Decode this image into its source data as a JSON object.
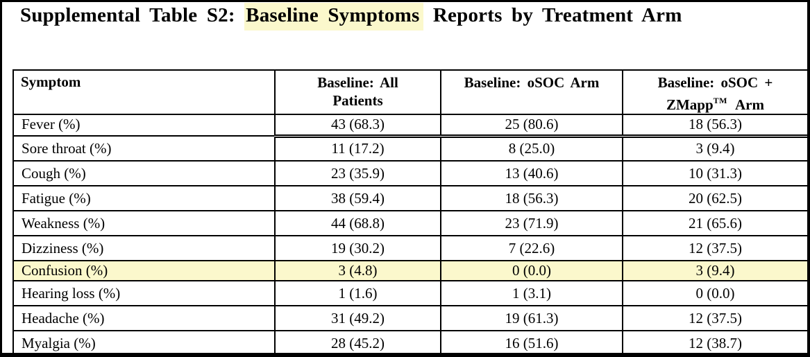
{
  "title": {
    "prefix": "Supplemental Table S2: ",
    "highlighted": "Baseline Symptoms",
    "suffix": " Reports by Treatment Arm"
  },
  "colors": {
    "highlight": "#FBF8CC",
    "border": "#000000",
    "text": "#000000",
    "page_background": "#FFFFFF"
  },
  "table": {
    "header": {
      "symptom": "Symptom",
      "all_line1": "Baseline: All",
      "all_line2": "Patients",
      "osoc": "Baseline: oSOC Arm",
      "zmapp_line1": "Baseline: oSOC +",
      "zmapp_brand": "ZMapp",
      "zmapp_tm": "TM",
      "zmapp_line2_suffix": "Arm"
    },
    "rows": [
      {
        "symptom": "Fever (%)",
        "all": "43 (68.3)",
        "osoc": "25 (80.6)",
        "zmapp": "18 (56.3)",
        "highlight": false
      },
      {
        "symptom": "Sore throat (%)",
        "all": "11 (17.2)",
        "osoc": "8 (25.0)",
        "zmapp": "3 (9.4)",
        "highlight": false
      },
      {
        "symptom": "Cough (%)",
        "all": "23 (35.9)",
        "osoc": "13 (40.6)",
        "zmapp": "10 (31.3)",
        "highlight": false
      },
      {
        "symptom": "Fatigue (%)",
        "all": "38 (59.4)",
        "osoc": "18 (56.3)",
        "zmapp": "20 (62.5)",
        "highlight": false
      },
      {
        "symptom": "Weakness (%)",
        "all": "44 (68.8)",
        "osoc": "23 (71.9)",
        "zmapp": "21 (65.6)",
        "highlight": false
      },
      {
        "symptom": "Dizziness (%)",
        "all": "19 (30.2)",
        "osoc": "7 (22.6)",
        "zmapp": "12 (37.5)",
        "highlight": false
      },
      {
        "symptom": "Confusion (%)",
        "all": "3 (4.8)",
        "osoc": "0 (0.0)",
        "zmapp": "3 (9.4)",
        "highlight": true
      },
      {
        "symptom": "Hearing loss (%)",
        "all": "1 (1.6)",
        "osoc": "1 (3.1)",
        "zmapp": "0 (0.0)",
        "highlight": false
      },
      {
        "symptom": "Headache (%)",
        "all": "31 (49.2)",
        "osoc": "19 (61.3)",
        "zmapp": "12 (37.5)",
        "highlight": false
      },
      {
        "symptom": "Myalgia (%)",
        "all": "28 (45.2)",
        "osoc": "16 (51.6)",
        "zmapp": "12 (38.7)",
        "highlight": false
      }
    ]
  }
}
